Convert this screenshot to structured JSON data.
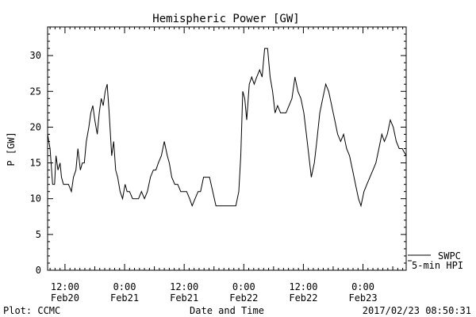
{
  "chart_data": {
    "type": "line",
    "title": "Hemispheric Power [GW]",
    "xlabel": "Date and Time",
    "ylabel": "P [GW]",
    "ylim": [
      0,
      34
    ],
    "yticks": [
      0,
      5,
      10,
      15,
      20,
      25,
      30
    ],
    "xlim_hours_since_2017-02-20T00:00": [
      8.5,
      80.7
    ],
    "xticks": [
      {
        "t": 12,
        "time": "12:00",
        "date": "Feb20"
      },
      {
        "t": 24,
        "time": "0:00",
        "date": "Feb21"
      },
      {
        "t": 36,
        "time": "12:00",
        "date": "Feb21"
      },
      {
        "t": 48,
        "time": "0:00",
        "date": "Feb22"
      },
      {
        "t": 60,
        "time": "12:00",
        "date": "Feb22"
      },
      {
        "t": 72,
        "time": "0:00",
        "date": "Feb23"
      }
    ],
    "legend": [
      {
        "label": "SWPC",
        "color": "#000000"
      },
      {
        "label": "5-min HPI",
        "color": "#000000"
      }
    ],
    "legend_position": "right, outside, bottom",
    "grid": false,
    "series": [
      {
        "name": "SWPC",
        "x": [
          8.5,
          9.0,
          9.5,
          9.9,
          10.2,
          10.6,
          11.0,
          11.3,
          11.7,
          12.1,
          12.7,
          13.3,
          13.7,
          14.2,
          14.6,
          15.1,
          15.5,
          15.9,
          16.3,
          16.8,
          17.2,
          17.6,
          18.0,
          18.5,
          18.9,
          19.3,
          19.7,
          20.1,
          20.5,
          20.9,
          21.4,
          21.8,
          22.2,
          22.6,
          23.1,
          23.6,
          24.1,
          24.5,
          25.0,
          25.6,
          26.2,
          26.8,
          27.4,
          28.0,
          28.6,
          29.2,
          29.8,
          30.3,
          30.8,
          31.4,
          32.0,
          32.6,
          33.0,
          33.5,
          34.1,
          34.7,
          35.3,
          35.9,
          36.5,
          37.1,
          37.6,
          38.2,
          38.8,
          39.3,
          39.9,
          40.5,
          41.1,
          42.4,
          44.1,
          45.3,
          46.4,
          47.0,
          47.4,
          47.8,
          48.2,
          48.6,
          49.1,
          49.6,
          50.1,
          50.6,
          51.2,
          51.7,
          52.2,
          52.8,
          53.3,
          53.8,
          54.3,
          54.8,
          55.4,
          55.9,
          56.5,
          57.1,
          57.7,
          58.3,
          58.9,
          59.5,
          60.1,
          60.6,
          61.1,
          61.6,
          62.2,
          62.7,
          63.3,
          63.9,
          64.5,
          65.1,
          65.7,
          66.3,
          66.9,
          67.5,
          68.1,
          68.7,
          69.3,
          69.9,
          70.5,
          71.1,
          71.6,
          72.2,
          72.8,
          73.4,
          74.0,
          74.6,
          75.2,
          75.8,
          76.3,
          76.9,
          77.5,
          78.1,
          78.7,
          79.3,
          79.9,
          80.7
        ],
        "y": [
          19,
          17,
          12,
          12,
          16,
          14,
          15,
          13,
          12,
          12,
          12,
          11,
          13,
          14,
          17,
          14,
          15,
          15,
          18,
          20,
          22,
          23,
          21,
          19,
          22,
          24,
          23,
          25,
          26,
          22,
          16,
          18,
          14,
          13,
          11,
          10,
          12,
          11,
          11,
          10,
          10,
          10,
          11,
          10,
          11,
          13,
          14,
          14,
          15,
          16,
          18,
          16,
          15,
          13,
          12,
          12,
          11,
          11,
          11,
          10,
          9,
          10,
          11,
          11,
          13,
          13,
          13,
          9,
          9,
          9,
          9,
          11,
          16,
          25,
          24,
          21,
          26,
          27,
          26,
          27,
          28,
          27,
          31,
          31,
          27,
          25,
          22,
          23,
          22,
          22,
          22,
          23,
          24,
          27,
          25,
          24,
          22,
          19,
          16,
          13,
          15,
          18,
          22,
          24,
          26,
          25,
          23,
          21,
          19,
          18,
          19,
          17,
          16,
          14,
          12,
          10,
          9,
          11,
          12,
          13,
          14,
          15,
          17,
          19,
          18,
          19,
          21,
          20,
          18,
          17,
          17,
          16
        ]
      }
    ],
    "footer_left": "Plot: CCMC",
    "footer_right": "2017/02/23 08:50:31"
  }
}
